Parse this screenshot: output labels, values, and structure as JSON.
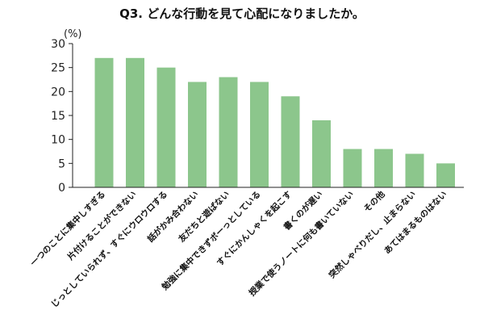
{
  "chart_data": {
    "type": "bar",
    "title": "Q3. どんな行動を見て心配になりましたか。",
    "ylabel": "(%)",
    "xlabel": "",
    "ylim": [
      0,
      30
    ],
    "yticks": [
      0,
      5,
      10,
      15,
      20,
      25,
      30
    ],
    "grid": false,
    "bar_color": "#8cc68c",
    "categories": [
      "一つのことに集中しすぎる",
      "片付けることができない",
      "じっとしていられず、すぐにウロウロする",
      "話がかみ合わない",
      "友だちと遊ばない",
      "勉強に集中できずボーっとしている",
      "すぐにかんしゃくを起こす",
      "書くのが遅い",
      "授業で使うノートに何も書いていない",
      "その他",
      "突然しゃべりだし、止まらない",
      "あてはまるものはない"
    ],
    "values": [
      27,
      27,
      25,
      22,
      23,
      22,
      19,
      14,
      8,
      8,
      7,
      5
    ]
  }
}
